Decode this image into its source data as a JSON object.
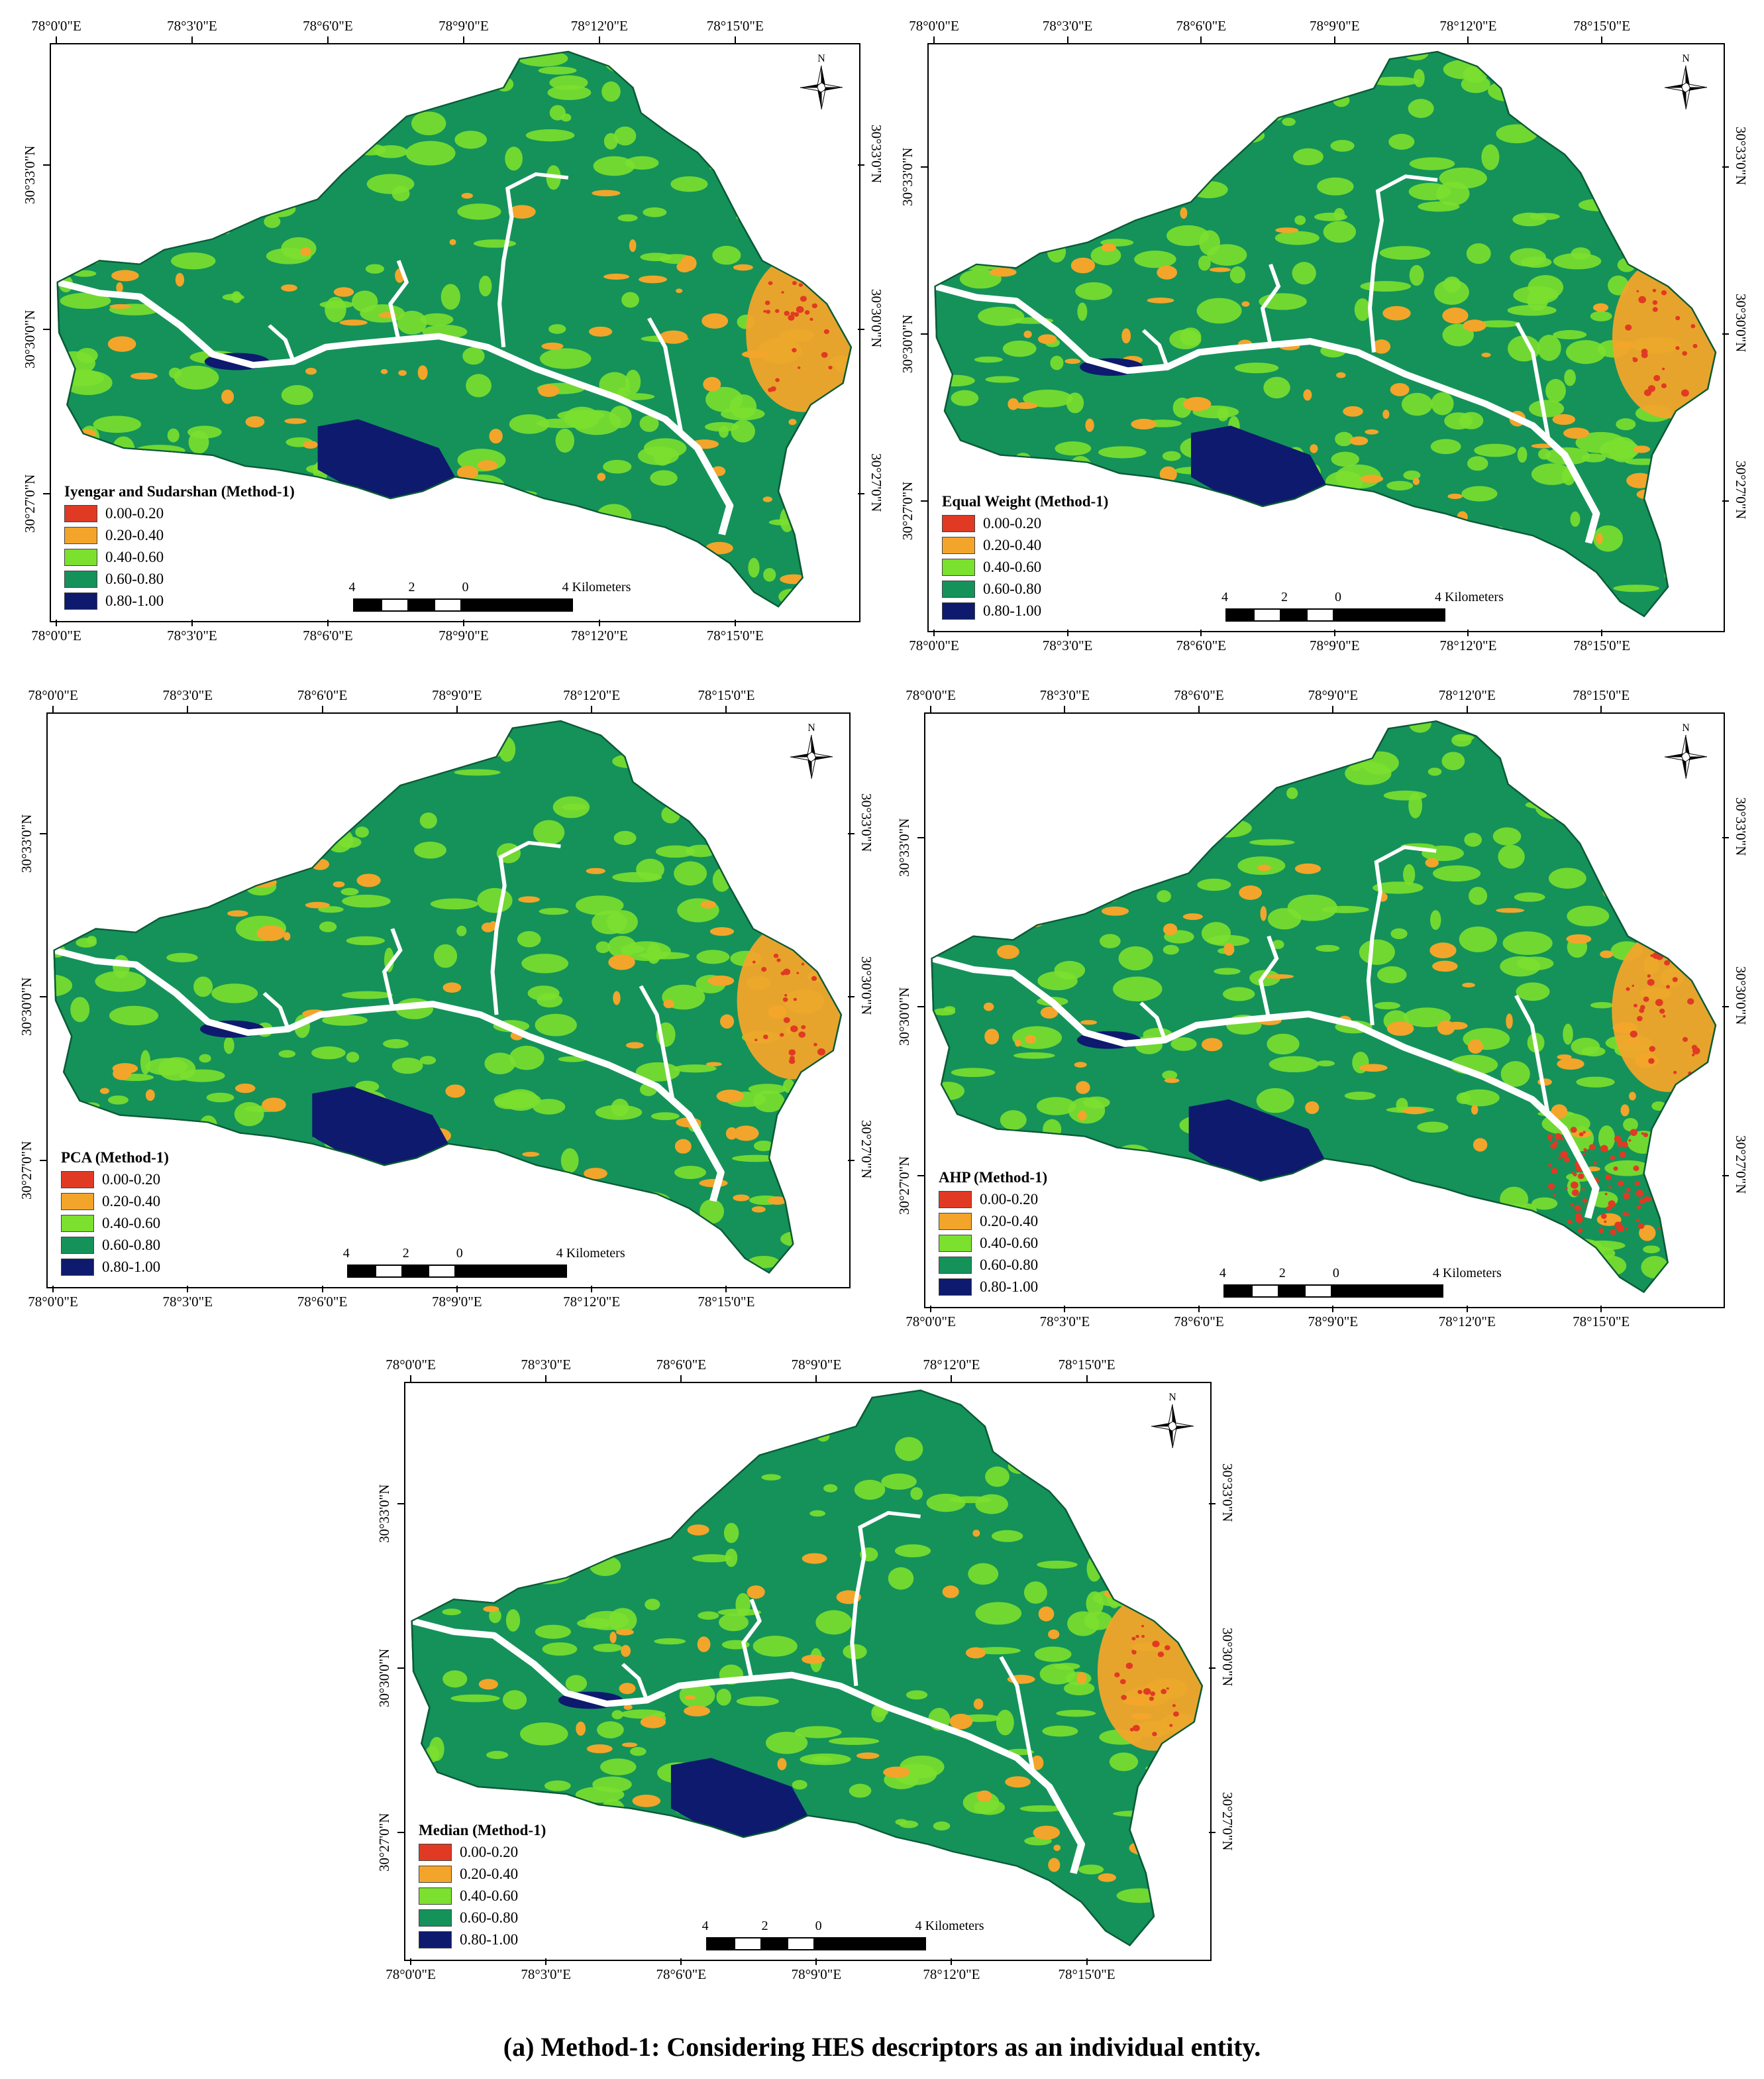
{
  "caption": "(a) Method-1: Considering HES descriptors as an individual entity.",
  "colors": {
    "class_0_20": "#e03a24",
    "class_20_40": "#f2a52a",
    "class_40_60": "#7be02e",
    "class_60_80": "#14925a",
    "class_80_100": "#0d1a6e",
    "stream": "#ffffff"
  },
  "legend_classes": [
    "0.00-0.20",
    "0.20-0.40",
    "0.40-0.60",
    "0.60-0.80",
    "0.80-1.00"
  ],
  "lon_ticks": [
    "78°0'0\"E",
    "78°3'0\"E",
    "78°6'0\"E",
    "78°9'0\"E",
    "78°12'0\"E",
    "78°15'0\"E"
  ],
  "lat_ticks": [
    "30°33'0\"N",
    "30°30'0\"N",
    "30°27'0\"N"
  ],
  "north_label": "N",
  "scale": {
    "labels": [
      "4",
      "2",
      "0"
    ],
    "end_label": "4 Kilometers"
  },
  "panels": [
    {
      "title": "Iyengar and Sudarshan (Method-1)"
    },
    {
      "title": "Equal Weight (Method-1)"
    },
    {
      "title": "PCA (Method-1)"
    },
    {
      "title": "AHP (Method-1)"
    },
    {
      "title": "Median (Method-1)"
    }
  ]
}
